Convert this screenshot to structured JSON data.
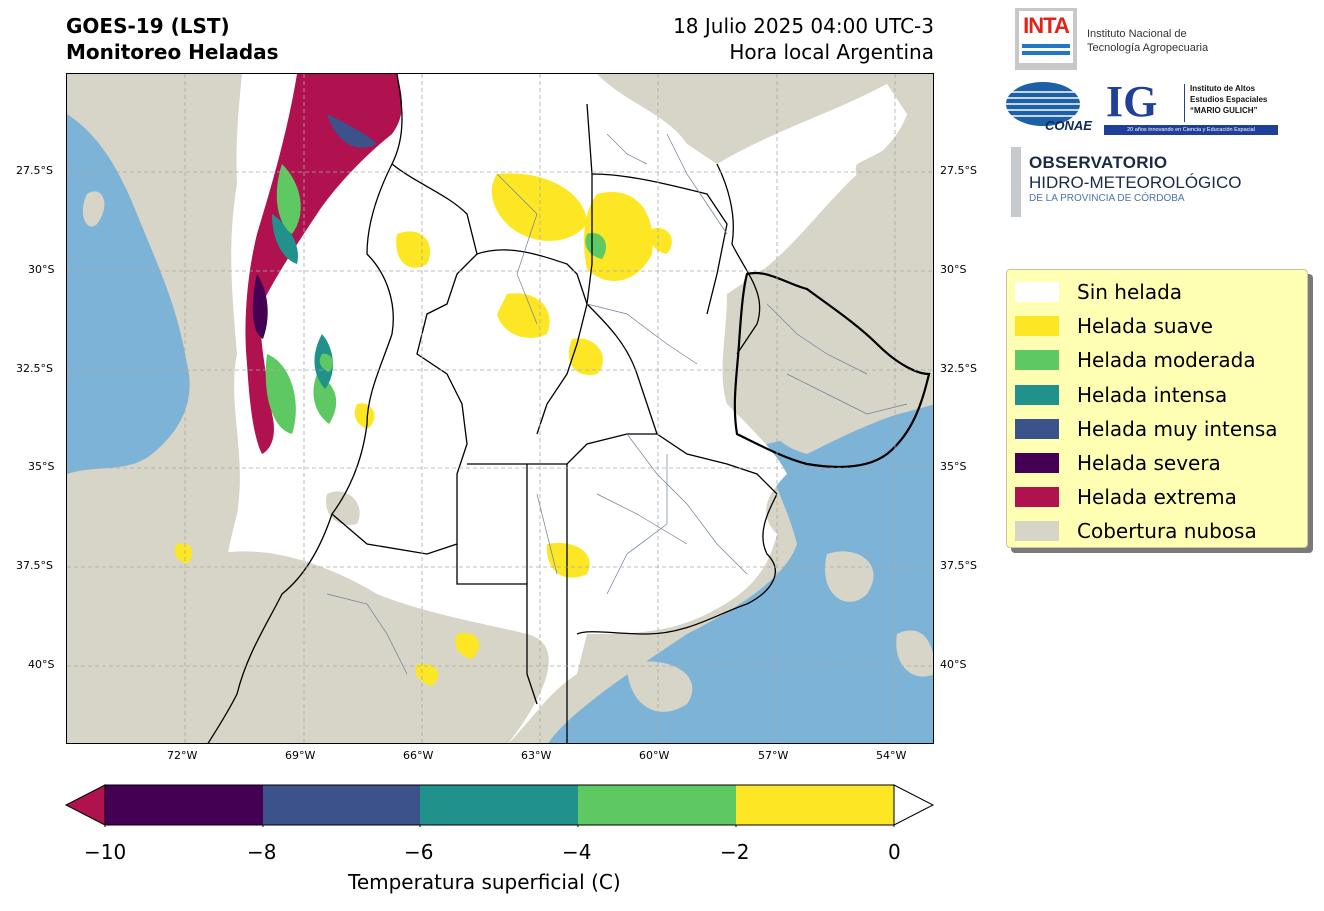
{
  "header": {
    "title_line1": "GOES-19 (LST)",
    "title_line2": "Monitoreo Heladas",
    "date_line1": "18 Julio 2025 04:00 UTC-3",
    "date_line2": "Hora local Argentina"
  },
  "map": {
    "lat_labels": [
      "27.5°S",
      "30°S",
      "32.5°S",
      "35°S",
      "37.5°S",
      "40°S"
    ],
    "lon_labels": [
      "72°W",
      "69°W",
      "66°W",
      "63°W",
      "60°W",
      "57°W",
      "54°W"
    ],
    "colors": {
      "ocean": "#7eb3d8",
      "cloud": "#d6d5c7",
      "land_no_frost": "#ffffff",
      "border": "#000000",
      "department_lines": "#6e7f95"
    }
  },
  "legend": {
    "items": [
      {
        "label": "Sin helada",
        "color": "#ffffff"
      },
      {
        "label": "Helada suave",
        "color": "#fde725"
      },
      {
        "label": "Helada moderada",
        "color": "#5ec962"
      },
      {
        "label": "Helada intensa",
        "color": "#21918c"
      },
      {
        "label": "Helada muy intensa",
        "color": "#3b528b"
      },
      {
        "label": "Helada severa",
        "color": "#440154"
      },
      {
        "label": "Helada extrema",
        "color": "#b0114f"
      },
      {
        "label": "Cobertura nubosa",
        "color": "#d6d5c7"
      }
    ]
  },
  "colorbar": {
    "ticks": [
      "−10",
      "−8",
      "−6",
      "−4",
      "−2",
      "0"
    ],
    "label": "Temperatura superficial (C)",
    "segments": [
      "#440154",
      "#3b528b",
      "#21918c",
      "#5ec962",
      "#fde725"
    ],
    "under_color": "#b0114f",
    "over_color": "#ffffff"
  },
  "logos": {
    "inta_short": "INTA",
    "inta_name_line1": "Instituto Nacional de",
    "inta_name_line2": "Tecnología Agropecuaria",
    "conae": "CONAE",
    "ig_short": "IG",
    "ig_name_line1": "Instituto de Altos",
    "ig_name_line2": "Estudios Espaciales",
    "ig_name_line3": "“MARIO GULICH”",
    "ig_tagline": "20 años innovando en Ciencia y Educación Espacial",
    "obs_line1": "OBSERVATORIO",
    "obs_line2": "HIDRO-METEOROLÓGICO",
    "obs_line3": "DE LA PROVINCIA DE CÓRDOBA"
  }
}
